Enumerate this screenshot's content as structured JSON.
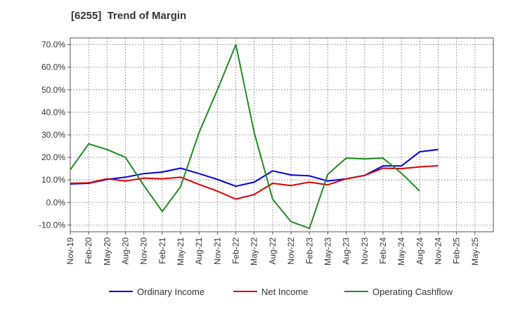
{
  "chart_data": {
    "type": "line",
    "title": "[6255]  Trend of Margin",
    "xlabel": "",
    "ylabel": "",
    "ylim": [
      -13,
      73
    ],
    "grid": true,
    "legend_position": "bottom",
    "y_ticks": [
      "70.0%",
      "60.0%",
      "50.0%",
      "40.0%",
      "30.0%",
      "20.0%",
      "10.0%",
      "0.0%",
      "-10.0%"
    ],
    "y_tick_values": [
      70,
      60,
      50,
      40,
      30,
      20,
      10,
      0,
      -10
    ],
    "x_ticks": [
      "Nov-19",
      "Feb-20",
      "May-20",
      "Aug-20",
      "Nov-20",
      "Feb-21",
      "May-21",
      "Aug-21",
      "Nov-21",
      "Feb-22",
      "May-22",
      "Aug-22",
      "Nov-22",
      "Feb-23",
      "May-23",
      "Aug-23",
      "Nov-23",
      "Feb-24",
      "May-24",
      "Aug-24",
      "Nov-24",
      "Feb-25",
      "May-25"
    ],
    "categories": [
      "Nov-19",
      "Feb-20",
      "May-20",
      "Aug-20",
      "Nov-20",
      "Feb-21",
      "May-21",
      "Aug-21",
      "Nov-21",
      "Feb-22",
      "May-22",
      "Aug-22",
      "Nov-22",
      "Feb-23",
      "May-23",
      "Aug-23",
      "Nov-23",
      "Feb-24",
      "May-24",
      "Aug-24",
      "Nov-24",
      "Feb-25",
      "May-25"
    ],
    "series": [
      {
        "name": "Ordinary Income",
        "color": "#0000dd",
        "values": [
          8.2,
          8.5,
          10.2,
          11.2,
          12.8,
          13.5,
          15.2,
          12.8,
          10.2,
          7.2,
          9.0,
          14.0,
          12.2,
          11.8,
          9.5,
          10.5,
          12.0,
          16.2,
          16.2,
          22.5,
          23.5,
          null,
          null
        ]
      },
      {
        "name": "Net Income",
        "color": "#dd0000",
        "values": [
          8.5,
          8.7,
          10.5,
          9.5,
          10.8,
          10.5,
          11.2,
          8.0,
          5.0,
          1.5,
          3.5,
          8.5,
          7.5,
          9.0,
          7.8,
          10.5,
          12.0,
          15.2,
          15.0,
          15.8,
          16.3,
          null,
          null
        ]
      },
      {
        "name": "Operating Cashflow",
        "color": "#228b22",
        "values": [
          14.5,
          26.0,
          23.5,
          20.0,
          7.5,
          -4.0,
          7.0,
          31.0,
          50.0,
          70.0,
          31.0,
          1.5,
          -8.5,
          -11.5,
          12.5,
          19.7,
          19.3,
          19.7,
          13.0,
          5.0,
          null,
          null,
          null
        ]
      }
    ]
  }
}
